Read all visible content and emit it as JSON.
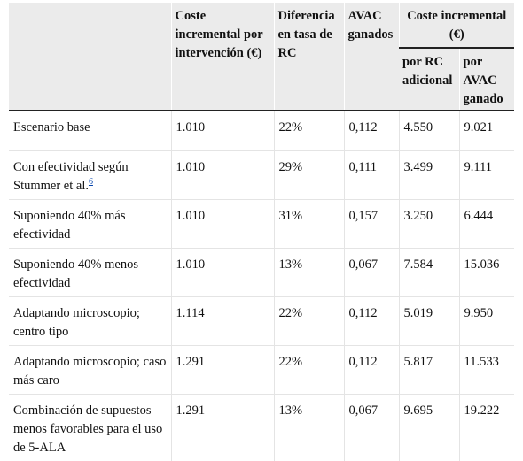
{
  "header": {
    "col_intervention_cost": "Coste incremental por intervención (€)",
    "col_rc_diff": "Diferencia en tasa de RC",
    "col_avac": "AVAC ganados",
    "col_incremental": "Coste incremental (€)",
    "sub_per_rc": "por RC adicional",
    "sub_per_avac": "por AVAC ganado"
  },
  "rows": [
    {
      "scenario": "Escenario base",
      "cost": "1.010",
      "diff": "22%",
      "avac": "0,112",
      "per_rc": "4.550",
      "per_avac": "9.021"
    },
    {
      "scenario": "Con efectividad según Stummer et al.",
      "ref": "6",
      "cost": "1.010",
      "diff": "29%",
      "avac": "0,111",
      "per_rc": "3.499",
      "per_avac": "9.111"
    },
    {
      "scenario": "Suponiendo 40% más efectividad",
      "cost": "1.010",
      "diff": "31%",
      "avac": "0,157",
      "per_rc": "3.250",
      "per_avac": "6.444"
    },
    {
      "scenario": "Suponiendo 40% menos efectividad",
      "cost": "1.010",
      "diff": "13%",
      "avac": "0,067",
      "per_rc": "7.584",
      "per_avac": "15.036"
    },
    {
      "scenario": "Adaptando microscopio; centro tipo",
      "cost": "1.114",
      "diff": "22%",
      "avac": "0,112",
      "per_rc": "5.019",
      "per_avac": "9.950"
    },
    {
      "scenario": "Adaptando microscopio; caso más caro",
      "cost": "1.291",
      "diff": "22%",
      "avac": "0,112",
      "per_rc": "5.817",
      "per_avac": "11.533"
    },
    {
      "scenario": "Combinación de supuestos menos favorables para el uso de 5-ALA",
      "cost": "1.291",
      "diff": "13%",
      "avac": "0,067",
      "per_rc": "9.695",
      "per_avac": "19.222"
    }
  ]
}
